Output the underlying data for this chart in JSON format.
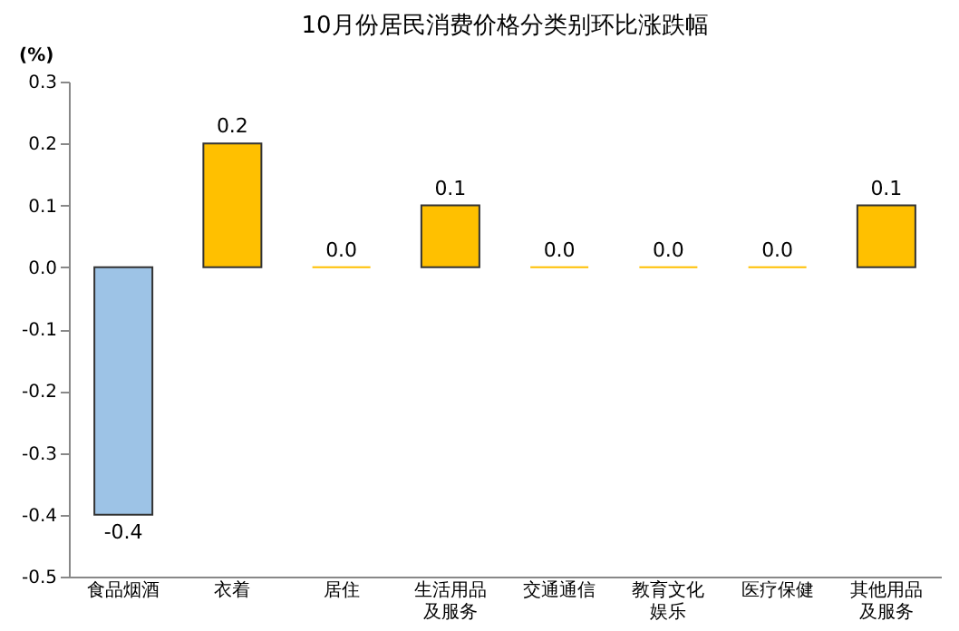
{
  "chart_data": {
    "type": "bar",
    "title": "10月份居民消费价格分类别环比涨跌幅",
    "ylabel": "(%)",
    "categories": [
      "食品烟酒",
      "衣着",
      "居住",
      "生活用品及服务",
      "交通通信",
      "教育文化娱乐",
      "医疗保健",
      "其他用品及服务"
    ],
    "values": [
      -0.4,
      0.2,
      0.0,
      0.1,
      0.0,
      0.0,
      0.0,
      0.1
    ],
    "value_labels": [
      "-0.4",
      "0.2",
      "0.0",
      "0.1",
      "0.0",
      "0.0",
      "0.0",
      "0.1"
    ],
    "colors": [
      "#9dc3e6",
      "#ffc000",
      "#ffc000",
      "#ffc000",
      "#ffc000",
      "#ffc000",
      "#ffc000",
      "#ffc000"
    ],
    "ylim": [
      -0.5,
      0.3
    ],
    "yticks": [
      -0.5,
      -0.4,
      -0.3,
      -0.2,
      -0.1,
      {
        "value": 0,
        "label": "0.0"
      },
      0.1,
      0.2,
      0.3
    ],
    "grid": false
  }
}
